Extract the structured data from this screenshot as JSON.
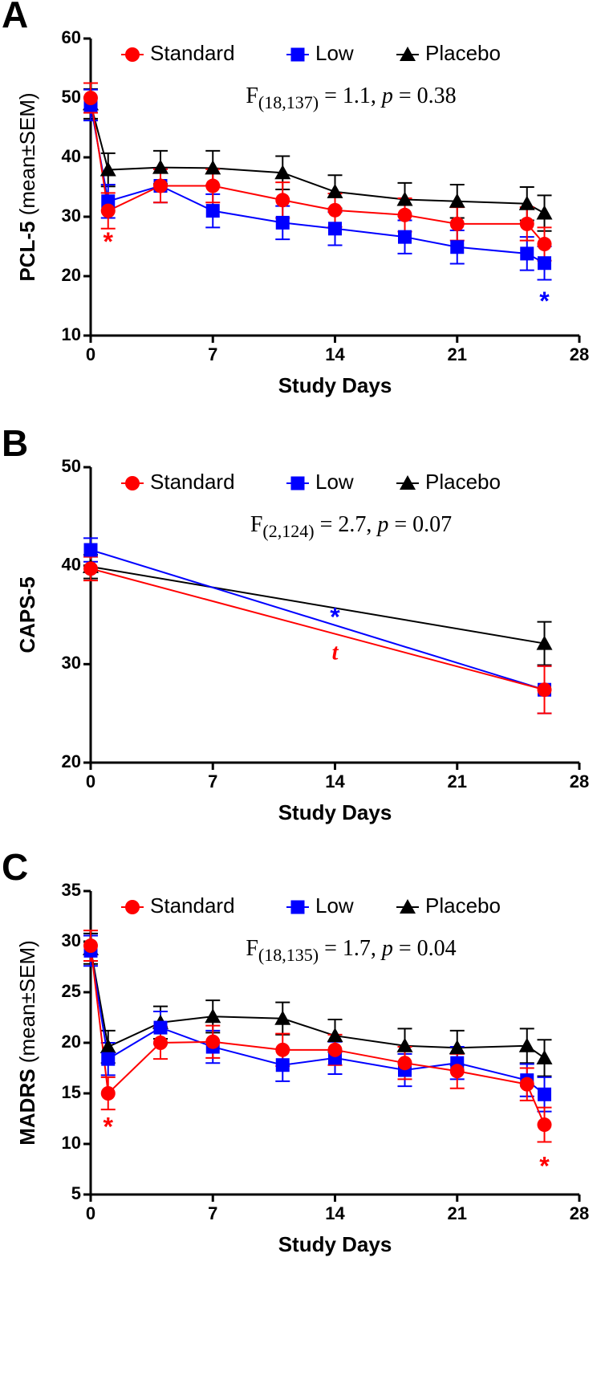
{
  "chart_data": [
    {
      "type": "line",
      "panel": "A",
      "ylabel": "PCL-5",
      "ylabel_note": "(mean±SEM)",
      "xlabel": "Study Days",
      "stat": [
        "F",
        "(18,137)",
        " = 1.1, ",
        "p",
        " = 0.38"
      ],
      "x": [
        0,
        1,
        4,
        7,
        11,
        14,
        18,
        21,
        25,
        26
      ],
      "xlim": [
        0,
        28
      ],
      "xticks": [
        0,
        7,
        14,
        21,
        28
      ],
      "ylim": [
        10,
        60
      ],
      "yticks": [
        10,
        20,
        30,
        40,
        50,
        60
      ],
      "series": [
        {
          "name": "Standard",
          "color": "#ff0000",
          "marker": "circle",
          "values": [
            50,
            31,
            35.2,
            35.2,
            32.8,
            31.1,
            30.3,
            28.8,
            28.8,
            25.4
          ],
          "errors": [
            2.5,
            3,
            2.8,
            2.8,
            3,
            2.8,
            2.8,
            2.8,
            2.8,
            2.8
          ]
        },
        {
          "name": "Low",
          "color": "#0000ff",
          "marker": "square",
          "values": [
            48.8,
            32.6,
            35.2,
            31,
            29,
            28,
            26.6,
            24.9,
            23.8,
            22.2
          ],
          "errors": [
            2.6,
            2.8,
            2.8,
            2.8,
            2.8,
            2.8,
            2.8,
            2.8,
            2.8,
            2.8
          ]
        },
        {
          "name": "Placebo",
          "color": "#000000",
          "marker": "triangle",
          "values": [
            49,
            37.9,
            38.3,
            38.2,
            37.4,
            34.2,
            32.9,
            32.6,
            32.2,
            30.6
          ],
          "errors": [
            2.5,
            2.8,
            2.8,
            2.9,
            2.8,
            2.8,
            2.8,
            2.8,
            2.8,
            3
          ]
        }
      ],
      "annotations": [
        {
          "text": "*",
          "x": 1,
          "y": 25.5,
          "color": "#ff0000"
        },
        {
          "text": "*",
          "x": 26,
          "y": 15.5,
          "color": "#0000ff"
        }
      ]
    },
    {
      "type": "line",
      "panel": "B",
      "ylabel": "CAPS-5",
      "xlabel": "Study Days",
      "stat": [
        "F",
        "(2,124)",
        " = 2.7, ",
        "p",
        " = 0.07"
      ],
      "x": [
        0,
        26
      ],
      "xlim": [
        0,
        28
      ],
      "xticks": [
        0,
        7,
        14,
        21,
        28
      ],
      "ylim": [
        20,
        50
      ],
      "yticks": [
        20,
        30,
        40,
        50
      ],
      "series": [
        {
          "name": "Standard",
          "color": "#ff0000",
          "marker": "circle",
          "values": [
            39.7,
            27.4
          ],
          "errors": [
            1.2,
            2.4
          ]
        },
        {
          "name": "Low",
          "color": "#0000ff",
          "marker": "square",
          "values": [
            41.6,
            27.4
          ],
          "errors": [
            1.2,
            2.4
          ]
        },
        {
          "name": "Placebo",
          "color": "#000000",
          "marker": "triangle",
          "values": [
            39.9,
            32.1
          ],
          "errors": [
            1.2,
            2.2
          ]
        }
      ],
      "annotations": [
        {
          "text": "*",
          "x": 14,
          "y": 34.6,
          "color": "#0000ff"
        },
        {
          "text": "t",
          "x": 14,
          "y": 31,
          "color": "#ff0000",
          "italic": true
        }
      ]
    },
    {
      "type": "line",
      "panel": "C",
      "ylabel": "MADRS",
      "ylabel_note": "(mean±SEM)",
      "xlabel": "Study Days",
      "stat": [
        "F",
        "(18,135)",
        " = 1.7, ",
        "p",
        " = 0.04"
      ],
      "x": [
        0,
        1,
        4,
        7,
        11,
        14,
        18,
        21,
        25,
        26
      ],
      "xlim": [
        0,
        28
      ],
      "xticks": [
        0,
        7,
        14,
        21,
        28
      ],
      "ylim": [
        5,
        35
      ],
      "yticks": [
        5,
        10,
        15,
        20,
        25,
        30,
        35
      ],
      "series": [
        {
          "name": "Standard",
          "color": "#ff0000",
          "marker": "circle",
          "values": [
            29.6,
            15,
            20,
            20.1,
            19.3,
            19.3,
            18,
            17.2,
            15.9,
            11.9
          ],
          "errors": [
            1.5,
            1.6,
            1.6,
            1.6,
            1.6,
            1.5,
            1.6,
            1.7,
            1.6,
            1.7
          ]
        },
        {
          "name": "Low",
          "color": "#0000ff",
          "marker": "square",
          "values": [
            29.1,
            18.4,
            21.5,
            19.6,
            17.8,
            18.5,
            17.3,
            18,
            16.3,
            14.9
          ],
          "errors": [
            1.5,
            1.6,
            1.6,
            1.6,
            1.6,
            1.6,
            1.6,
            1.6,
            1.6,
            1.7
          ]
        },
        {
          "name": "Placebo",
          "color": "#000000",
          "marker": "triangle",
          "values": [
            29.3,
            19.6,
            22,
            22.6,
            22.4,
            20.7,
            19.7,
            19.5,
            19.7,
            18.5
          ],
          "errors": [
            1.5,
            1.6,
            1.6,
            1.6,
            1.6,
            1.6,
            1.7,
            1.7,
            1.7,
            1.8
          ]
        }
      ],
      "annotations": [
        {
          "text": "*",
          "x": 1,
          "y": 11.5,
          "color": "#ff0000"
        },
        {
          "text": "*",
          "x": 26,
          "y": 7.6,
          "color": "#ff0000"
        }
      ]
    }
  ]
}
